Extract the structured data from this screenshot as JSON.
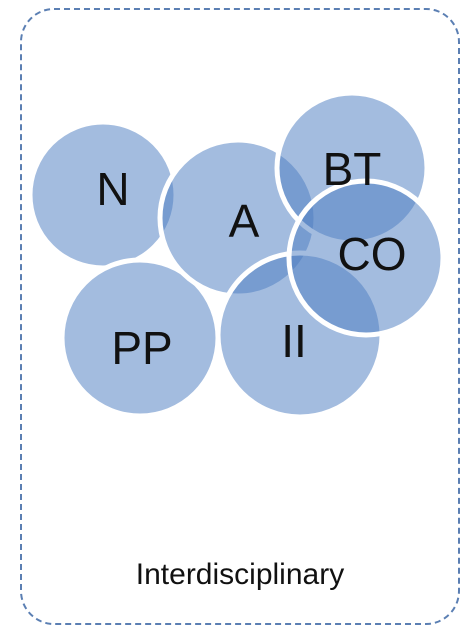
{
  "diagram": {
    "caption": "Interdisciplinary",
    "circles": [
      {
        "id": "N",
        "label": "N"
      },
      {
        "id": "PP",
        "label": "PP"
      },
      {
        "id": "A",
        "label": "A"
      },
      {
        "id": "II",
        "label": "II"
      },
      {
        "id": "BT",
        "label": "BT"
      },
      {
        "id": "CO",
        "label": "CO"
      }
    ],
    "colors": {
      "circle_fill": "#4f7fc1",
      "circle_stroke": "#ffffff",
      "frame_border": "#5b7fb3",
      "text": "#111111"
    }
  }
}
